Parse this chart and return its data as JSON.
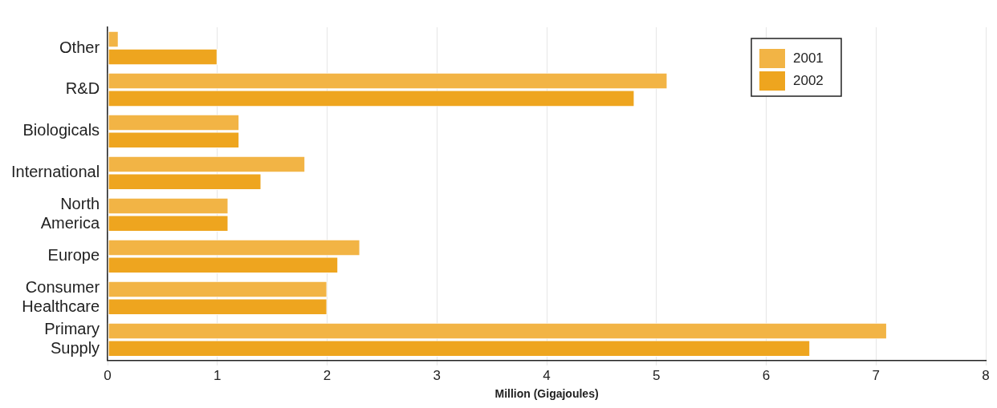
{
  "chart_data": {
    "type": "bar",
    "orientation": "horizontal",
    "xlabel": "Million (Gigajoules)",
    "categories": [
      "Other",
      "R&D",
      "Biologicals",
      "International",
      "North America",
      "Europe",
      "Consumer Healthcare",
      "Primary Supply"
    ],
    "series": [
      {
        "name": "2001",
        "color": "#f2b445",
        "values": [
          0.1,
          5.1,
          1.2,
          1.8,
          1.1,
          2.3,
          2.0,
          7.1
        ]
      },
      {
        "name": "2002",
        "color": "#eea51f",
        "values": [
          1.0,
          4.8,
          1.2,
          1.4,
          1.1,
          2.1,
          2.0,
          6.4
        ]
      }
    ],
    "xlim": [
      0,
      8
    ],
    "xticks": [
      0,
      1,
      2,
      3,
      4,
      5,
      6,
      7,
      8
    ],
    "grid": "x",
    "legend": "top right"
  }
}
